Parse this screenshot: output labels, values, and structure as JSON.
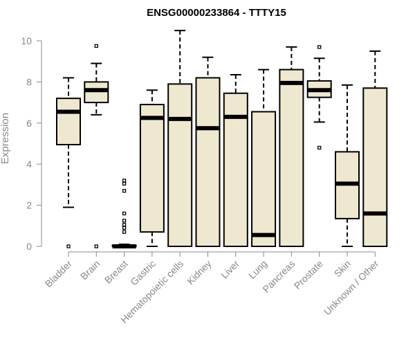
{
  "chart_data": {
    "type": "boxplot",
    "title": "ENSG00000233864 - TTTY15",
    "ylabel": "Expression",
    "xlabel": "",
    "ylim": [
      0,
      10.6
    ],
    "yticks": [
      0,
      2,
      4,
      6,
      8,
      10
    ],
    "colors": {
      "box_fill": "#efe8d0",
      "stroke": "#000000",
      "axis": "#888888"
    },
    "categories": [
      "Bladder",
      "Brain",
      "Breast",
      "Gastric",
      "Hematopoietic cells",
      "Kidney",
      "Liver",
      "Lung",
      "Pancreas",
      "Prostate",
      "Skin",
      "Unknown / Other"
    ],
    "boxes": [
      {
        "category": "Bladder",
        "whisker_low": 1.9,
        "q1": 4.95,
        "median": 6.55,
        "q3": 7.2,
        "whisker_high": 8.2,
        "outliers": [
          0
        ]
      },
      {
        "category": "Brain",
        "whisker_low": 6.4,
        "q1": 7.0,
        "median": 7.6,
        "q3": 8.0,
        "whisker_high": 8.9,
        "outliers": [
          9.75,
          0
        ]
      },
      {
        "category": "Breast",
        "whisker_low": 0,
        "q1": 0,
        "median": 0,
        "q3": 0.05,
        "whisker_high": 0.1,
        "outliers": [
          3.2,
          3.05,
          2.7,
          1.6,
          1.25,
          1.05,
          0.9,
          0.7
        ]
      },
      {
        "category": "Gastric",
        "whisker_low": 0,
        "q1": 0.7,
        "median": 6.25,
        "q3": 6.9,
        "whisker_high": 7.6,
        "outliers": []
      },
      {
        "category": "Hematopoietic cells",
        "whisker_low": 0,
        "q1": 0,
        "median": 6.2,
        "q3": 7.9,
        "whisker_high": 10.5,
        "outliers": []
      },
      {
        "category": "Kidney",
        "whisker_low": 0,
        "q1": 0,
        "median": 5.75,
        "q3": 8.2,
        "whisker_high": 9.2,
        "outliers": []
      },
      {
        "category": "Liver",
        "whisker_low": 0,
        "q1": 0,
        "median": 6.3,
        "q3": 7.45,
        "whisker_high": 8.35,
        "outliers": []
      },
      {
        "category": "Lung",
        "whisker_low": 0,
        "q1": 0,
        "median": 0.55,
        "q3": 6.55,
        "whisker_high": 8.6,
        "outliers": []
      },
      {
        "category": "Pancreas",
        "whisker_low": 0,
        "q1": 0,
        "median": 7.95,
        "q3": 8.6,
        "whisker_high": 9.7,
        "outliers": []
      },
      {
        "category": "Prostate",
        "whisker_low": 6.05,
        "q1": 7.25,
        "median": 7.6,
        "q3": 8.05,
        "whisker_high": 9.15,
        "outliers": [
          9.7,
          4.8
        ]
      },
      {
        "category": "Skin",
        "whisker_low": 0,
        "q1": 1.35,
        "median": 3.05,
        "q3": 4.6,
        "whisker_high": 7.85,
        "outliers": []
      },
      {
        "category": "Unknown / Other",
        "whisker_low": 0,
        "q1": 0,
        "median": 1.6,
        "q3": 7.7,
        "whisker_high": 9.5,
        "outliers": []
      }
    ]
  }
}
